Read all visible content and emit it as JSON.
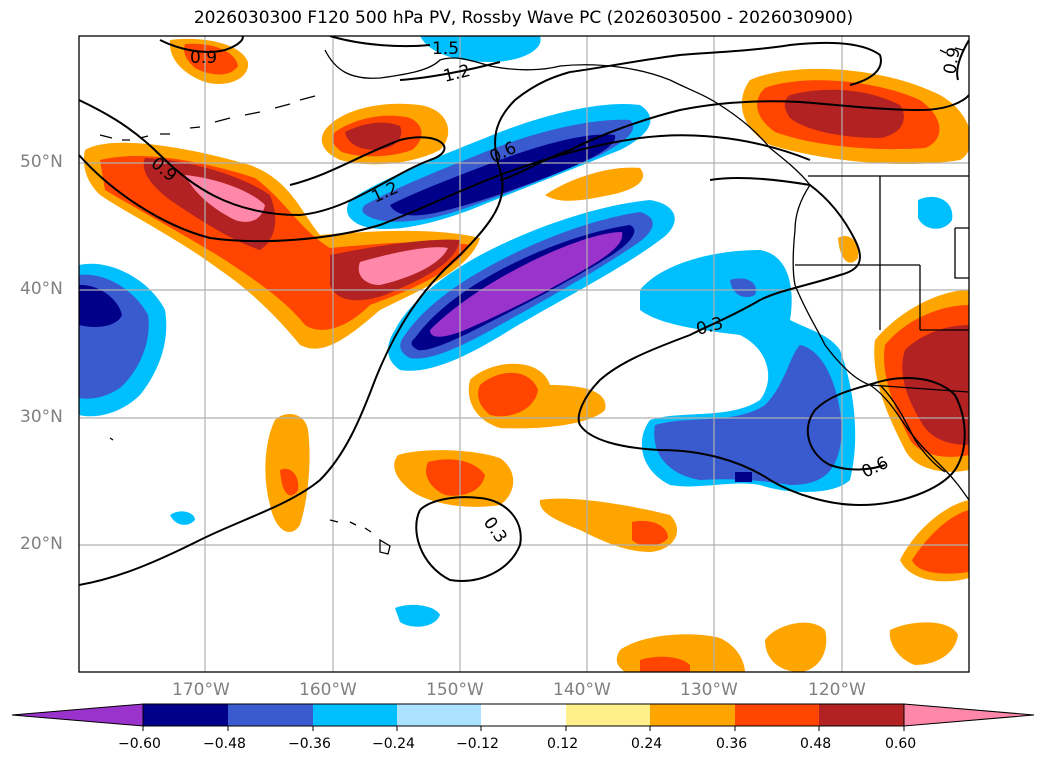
{
  "title": "2026030300 F120 500 hPa PV, Rossby Wave PC (2026030500 - 2026030900)",
  "latitude_labels": [
    "50°N",
    "40°N",
    "30°N",
    "20°N"
  ],
  "longitude_labels": [
    "170°W",
    "160°W",
    "150°W",
    "140°W",
    "130°W",
    "120°W"
  ],
  "contour_labels": [
    "0.9",
    "1.5",
    "1.2",
    "0.9",
    "1.2",
    "0.6",
    "0.3",
    "0.6",
    "0.3",
    "0.9"
  ],
  "colorbar": {
    "ticks": [
      "−0.60",
      "−0.48",
      "−0.36",
      "−0.24",
      "−0.12",
      "0.12",
      "0.24",
      "0.36",
      "0.48",
      "0.60"
    ],
    "colors": [
      "#9933cc",
      "#00008b",
      "#3a5bd0",
      "#00bfff",
      "#aae2ff",
      "#ffffff",
      "#fff08c",
      "#ffa500",
      "#ff4500",
      "#b22222",
      "#ff88aa"
    ]
  },
  "colors": {
    "neg_strong": "#9933cc",
    "neg_dark": "#00008b",
    "neg_mid": "#3a5bd0",
    "neg_light": "#00bfff",
    "pos_light": "#ffa500",
    "pos_mid": "#ff4500",
    "pos_dark": "#b22222",
    "pos_strong": "#ff88aa"
  }
}
